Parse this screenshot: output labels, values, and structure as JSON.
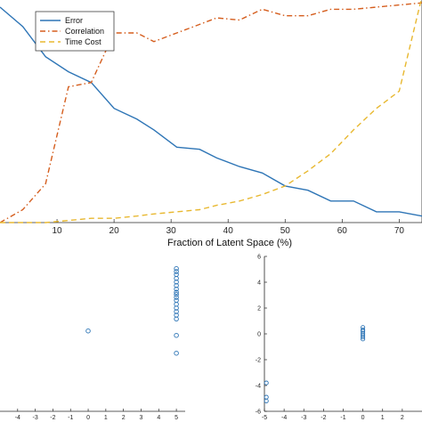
{
  "chart_data": [
    {
      "type": "line",
      "xlabel": "Fraction of Latent Space (%)",
      "ylabel": "",
      "xlim": [
        0,
        74
      ],
      "ylim": [
        0,
        1
      ],
      "xticks": [
        10,
        20,
        30,
        40,
        50,
        60,
        70
      ],
      "grid": false,
      "legend_position": "top-left",
      "x": [
        0,
        4,
        8,
        12,
        16,
        20,
        24,
        27,
        31,
        35,
        38,
        42,
        46,
        50,
        54,
        58,
        62,
        66,
        70,
        74
      ],
      "series": [
        {
          "name": "Error",
          "color": "#2E75B6",
          "style": "solid",
          "values": [
            1.0,
            0.91,
            0.77,
            0.7,
            0.65,
            0.53,
            0.48,
            0.43,
            0.35,
            0.34,
            0.3,
            0.26,
            0.23,
            0.17,
            0.15,
            0.1,
            0.1,
            0.05,
            0.05,
            0.03
          ]
        },
        {
          "name": "Correlation",
          "color": "#D55E1E",
          "style": "dash-dot",
          "values": [
            0.0,
            0.06,
            0.18,
            0.63,
            0.65,
            0.88,
            0.88,
            0.84,
            0.88,
            0.92,
            0.95,
            0.94,
            0.99,
            0.96,
            0.96,
            0.99,
            0.99,
            1.0,
            1.01,
            1.02
          ]
        },
        {
          "name": "Time Cost",
          "color": "#E8B830",
          "style": "dashed",
          "values": [
            0.0,
            0.0,
            0.0,
            0.01,
            0.02,
            0.02,
            0.03,
            0.04,
            0.05,
            0.06,
            0.08,
            0.1,
            0.13,
            0.17,
            0.24,
            0.32,
            0.43,
            0.53,
            0.61,
            1.05
          ]
        }
      ]
    },
    {
      "type": "scatter",
      "xlim": [
        -5,
        5.5
      ],
      "ylim": [
        -3,
        1.8
      ],
      "xticks": [
        "-4",
        "-3",
        "-2",
        "-1",
        "0",
        "1",
        "2",
        "3",
        "4",
        "5"
      ],
      "marker": "open-circle",
      "color": "#2E75B6",
      "points": [
        [
          0,
          -0.35
        ],
        [
          5,
          -0.5
        ],
        [
          5,
          -1.1
        ],
        [
          5,
          1.75
        ],
        [
          5,
          1.65
        ],
        [
          5,
          1.55
        ],
        [
          5,
          1.42
        ],
        [
          5,
          1.3
        ],
        [
          5,
          1.18
        ],
        [
          5,
          1.06
        ],
        [
          5,
          0.95
        ],
        [
          5,
          0.88
        ],
        [
          5,
          0.78
        ],
        [
          5,
          0.68
        ],
        [
          5,
          0.55
        ],
        [
          5,
          0.42
        ],
        [
          5,
          0.3
        ],
        [
          5,
          0.18
        ],
        [
          5,
          0.05
        ]
      ]
    },
    {
      "type": "scatter",
      "xlim": [
        -5,
        3
      ],
      "ylim": [
        -6,
        6
      ],
      "xticks": [
        "-5",
        "-4",
        "-3",
        "-2",
        "-1",
        "0",
        "1",
        "2"
      ],
      "yticks": [
        "-6",
        "-4",
        "-2",
        "0",
        "2",
        "4",
        "6"
      ],
      "marker": "open-circle",
      "color": "#2E75B6",
      "points": [
        [
          0,
          0.5
        ],
        [
          0,
          0.3
        ],
        [
          0,
          0.2
        ],
        [
          0,
          0.05
        ],
        [
          0,
          -0.1
        ],
        [
          0,
          -0.25
        ],
        [
          0,
          -0.4
        ],
        [
          -4.9,
          -3.8
        ],
        [
          -4.9,
          -4.9
        ],
        [
          -4.9,
          -5.2
        ]
      ]
    }
  ]
}
